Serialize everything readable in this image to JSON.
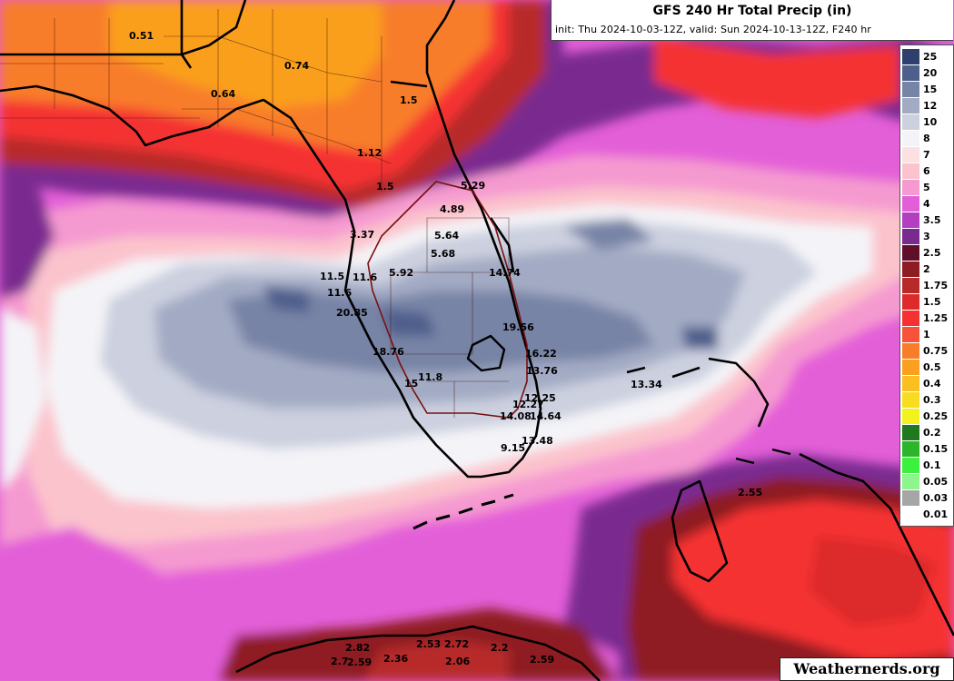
{
  "header": {
    "title": "GFS 240 Hr Total Precip (in)",
    "subtitle": "init: Thu 2024-10-03-12Z, valid: Sun 2024-10-13-12Z, F240 hr"
  },
  "legend": {
    "items": [
      {
        "label": "25",
        "color": "#2e3f6e"
      },
      {
        "label": "20",
        "color": "#4f5f8c"
      },
      {
        "label": "15",
        "color": "#7884a6"
      },
      {
        "label": "12",
        "color": "#a3abc4"
      },
      {
        "label": "10",
        "color": "#ccd0df"
      },
      {
        "label": "8",
        "color": "#f4f4f8"
      },
      {
        "label": "7",
        "color": "#fde0e2"
      },
      {
        "label": "6",
        "color": "#fbc3cc"
      },
      {
        "label": "5",
        "color": "#f59ad0"
      },
      {
        "label": "4",
        "color": "#e35fd8"
      },
      {
        "label": "3.5",
        "color": "#b13fc0"
      },
      {
        "label": "3",
        "color": "#7a2a8f"
      },
      {
        "label": "2.5",
        "color": "#600f2a"
      },
      {
        "label": "2",
        "color": "#8e1c22"
      },
      {
        "label": "1.75",
        "color": "#b82a2a"
      },
      {
        "label": "1.5",
        "color": "#dd2b2b"
      },
      {
        "label": "1.25",
        "color": "#f53131"
      },
      {
        "label": "1",
        "color": "#f7533a"
      },
      {
        "label": "0.75",
        "color": "#f87d29"
      },
      {
        "label": "0.5",
        "color": "#fa9f1f"
      },
      {
        "label": "0.4",
        "color": "#fbbf22"
      },
      {
        "label": "0.3",
        "color": "#f9dc1f"
      },
      {
        "label": "0.25",
        "color": "#f2f21d"
      },
      {
        "label": "0.2",
        "color": "#1f7a1f"
      },
      {
        "label": "0.15",
        "color": "#2bb52b"
      },
      {
        "label": "0.1",
        "color": "#3df03d"
      },
      {
        "label": "0.05",
        "color": "#8cf58c"
      },
      {
        "label": "0.03",
        "color": "#a6a6a6"
      },
      {
        "label": "0.01",
        "color": "#ffffff"
      }
    ]
  },
  "map_labels": [
    {
      "text": "0.51"
    },
    {
      "text": "0.74"
    },
    {
      "text": "0.64"
    },
    {
      "text": "1.12"
    },
    {
      "text": "1.5"
    },
    {
      "text": "1.5"
    },
    {
      "text": "3.37"
    },
    {
      "text": "5.29"
    },
    {
      "text": "4.89"
    },
    {
      "text": "5.64"
    },
    {
      "text": "5.68"
    },
    {
      "text": "5.92"
    },
    {
      "text": "14.74"
    },
    {
      "text": "11.5"
    },
    {
      "text": "11.6"
    },
    {
      "text": "11.6"
    },
    {
      "text": "20.85"
    },
    {
      "text": "19.56"
    },
    {
      "text": "16.22"
    },
    {
      "text": "13.76"
    },
    {
      "text": "18.76"
    },
    {
      "text": "11.8"
    },
    {
      "text": "15"
    },
    {
      "text": "12.25"
    },
    {
      "text": "12.27"
    },
    {
      "text": "14.08"
    },
    {
      "text": "14.64"
    },
    {
      "text": "13.48"
    },
    {
      "text": "9.15"
    },
    {
      "text": "13.34"
    },
    {
      "text": "2.55"
    },
    {
      "text": "2.82"
    },
    {
      "text": "2.7"
    },
    {
      "text": "2.59"
    },
    {
      "text": "2.36"
    },
    {
      "text": "2.53"
    },
    {
      "text": "2.72"
    },
    {
      "text": "2.06"
    },
    {
      "text": "2.2"
    },
    {
      "text": "2.59"
    }
  ],
  "branding": {
    "text": "Weathernerds.org"
  }
}
